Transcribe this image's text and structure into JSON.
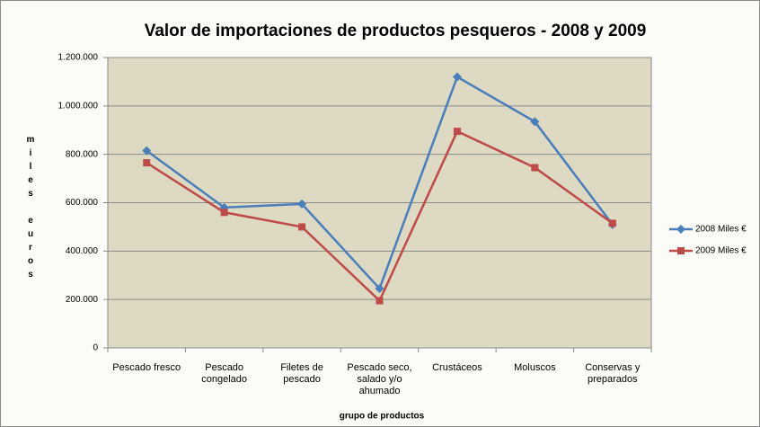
{
  "chart_data": {
    "type": "line",
    "title": "Valor de importaciones de productos pesqueros  - 2008 y 2009",
    "x_label": "grupo de productos",
    "y_label": "miles euros",
    "categories": [
      "Pescado fresco",
      "Pescado congelado",
      "Filetes de pescado",
      "Pescado seco, salado y/o ahumado",
      "Crustáceos",
      "Moluscos",
      "Conservas y preparados"
    ],
    "series": [
      {
        "name": "2008 Miles €",
        "color": "#4a7ebb",
        "marker": "diamond",
        "values": [
          815000,
          580000,
          595000,
          245000,
          1120000,
          935000,
          510000
        ]
      },
      {
        "name": "2009 Miles €",
        "color": "#be4b48",
        "marker": "square",
        "values": [
          765000,
          560000,
          500000,
          195000,
          895000,
          745000,
          515000
        ]
      }
    ],
    "ylim": [
      0,
      1200000
    ],
    "yticks": [
      0,
      {
        "value": 200000,
        "label": "200.000"
      },
      {
        "value": 400000,
        "label": "400.000"
      },
      {
        "value": 600000,
        "label": "600.000"
      },
      {
        "value": 800000,
        "label": "800.000"
      },
      {
        "value": 1000000,
        "label": "1.000.000"
      },
      {
        "value": 1200000,
        "label": "1.200.000"
      }
    ],
    "grid": true,
    "legend": "right",
    "plot_background": "#ddd9c3"
  }
}
